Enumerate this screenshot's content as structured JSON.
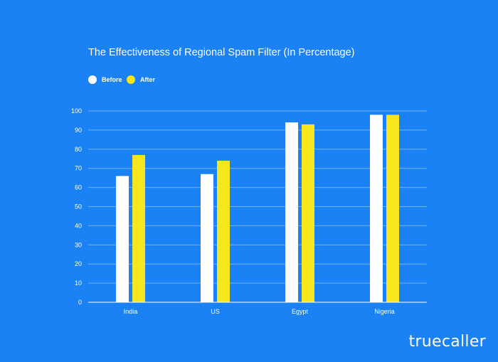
{
  "chart_data": {
    "type": "bar",
    "title": "The Effectiveness of Regional Spam Filter (In Percentage)",
    "xlabel": "",
    "ylabel": "",
    "categories": [
      "India",
      "US",
      "Egypt",
      "Nigeria"
    ],
    "series": [
      {
        "name": "Before",
        "values": [
          66,
          67,
          94,
          98
        ]
      },
      {
        "name": "After",
        "values": [
          77,
          74,
          93,
          98
        ]
      }
    ],
    "ylim": [
      0,
      100
    ],
    "yticks": [
      0,
      10,
      20,
      30,
      40,
      50,
      60,
      70,
      80,
      90,
      100
    ],
    "grid": true,
    "legend_position": "top-left"
  },
  "colors": {
    "background": "#1a82f4",
    "before": "#ffffff",
    "after": "#f7e51e",
    "gridline": "#6fb1f8",
    "axis": "#ffffff"
  },
  "brand": {
    "logo_text": "truecaller"
  }
}
